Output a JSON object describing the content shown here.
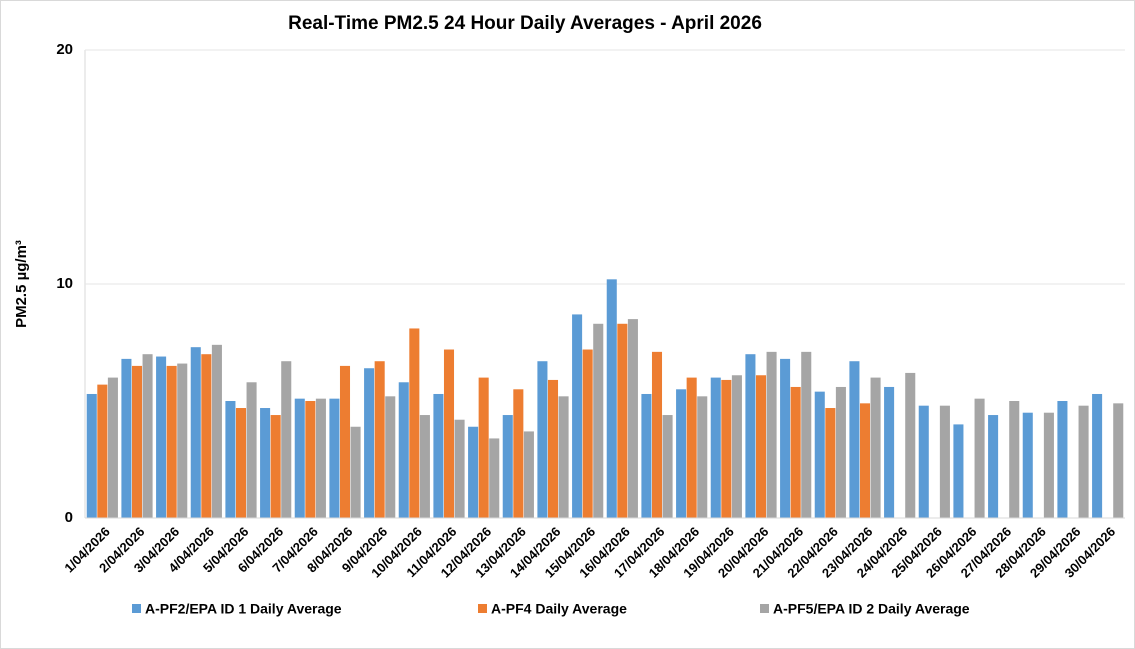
{
  "chart_data": {
    "type": "bar",
    "title": "Real-Time PM2.5 24 Hour Daily Averages - April 2026",
    "y_label": "PM2.5  µg/m³",
    "categories": [
      "1/04/2026",
      "2/04/2026",
      "3/04/2026",
      "4/04/2026",
      "5/04/2026",
      "6/04/2026",
      "7/04/2026",
      "8/04/2026",
      "9/04/2026",
      "10/04/2026",
      "11/04/2026",
      "12/04/2026",
      "13/04/2026",
      "14/04/2026",
      "15/04/2026",
      "16/04/2026",
      "17/04/2026",
      "18/04/2026",
      "19/04/2026",
      "20/04/2026",
      "21/04/2026",
      "22/04/2026",
      "23/04/2026",
      "24/04/2026",
      "25/04/2026",
      "26/04/2026",
      "27/04/2026",
      "28/04/2026",
      "29/04/2026",
      "30/04/2026"
    ],
    "series": [
      {
        "name": "A-PF2/EPA ID 1 Daily Average",
        "color": "#5b9bd5",
        "values": [
          5.3,
          6.8,
          6.9,
          7.3,
          5.0,
          4.7,
          5.1,
          5.1,
          6.4,
          5.8,
          5.3,
          3.9,
          4.4,
          6.7,
          8.7,
          10.2,
          5.3,
          5.5,
          6.0,
          7.0,
          6.8,
          5.4,
          6.7,
          5.6,
          4.8,
          4.0,
          4.4,
          4.5,
          5.0,
          5.3
        ]
      },
      {
        "name": "A-PF4 Daily Average",
        "color": "#ed7d31",
        "values": [
          5.7,
          6.5,
          6.5,
          7.0,
          4.7,
          4.4,
          5.0,
          6.5,
          6.7,
          8.1,
          7.2,
          6.0,
          5.5,
          5.9,
          7.2,
          8.3,
          7.1,
          6.0,
          5.9,
          6.1,
          5.6,
          4.7,
          4.9,
          null,
          null,
          null,
          null,
          null,
          null,
          null
        ]
      },
      {
        "name": "A-PF5/EPA ID 2 Daily Average",
        "color": "#a5a5a5",
        "values": [
          6.0,
          7.0,
          6.6,
          7.4,
          5.8,
          6.7,
          5.1,
          3.9,
          5.2,
          4.4,
          4.2,
          3.4,
          3.7,
          5.2,
          8.3,
          8.5,
          4.4,
          5.2,
          6.1,
          7.1,
          7.1,
          5.6,
          6.0,
          6.2,
          4.8,
          5.1,
          5.0,
          4.5,
          4.8,
          4.9
        ]
      }
    ],
    "ylim": [
      0,
      20
    ],
    "yticks": [
      0,
      10,
      20
    ],
    "grid": true
  }
}
